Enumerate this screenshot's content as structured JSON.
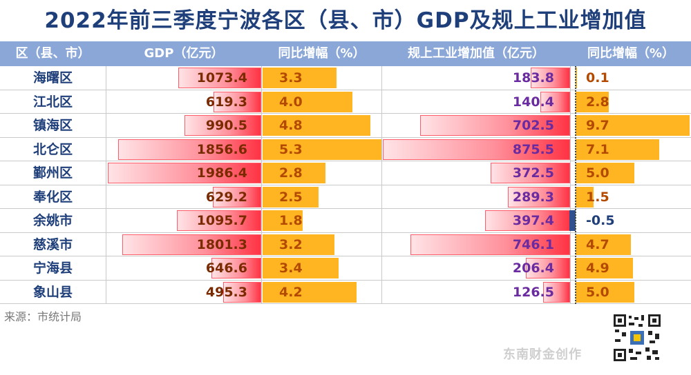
{
  "title": "2022年前三季度宁波各区（县、市）GDP及规上工业增加值",
  "headers": [
    "区（县、市）",
    "GDP（亿元）",
    "同比增幅（%）",
    "规上工业增加值（亿元）",
    "同比增幅（%）"
  ],
  "source": "来源：市统计局",
  "watermark": "东南财金创作",
  "colors": {
    "title": "#1f3f7a",
    "header_bg": "#8aa7d8",
    "bar_red": "#ff3344",
    "bar_orange": "#ffb522"
  },
  "rows": [
    {
      "name": "海曙区",
      "gdp": "1073.4",
      "gdp_g": "3.3",
      "ind": "183.8",
      "ind_g": "0.1"
    },
    {
      "name": "江北区",
      "gdp": "619.3",
      "gdp_g": "4.0",
      "ind": "140.4",
      "ind_g": "2.8"
    },
    {
      "name": "镇海区",
      "gdp": "990.5",
      "gdp_g": "4.8",
      "ind": "702.5",
      "ind_g": "9.7"
    },
    {
      "name": "北仑区",
      "gdp": "1856.6",
      "gdp_g": "5.3",
      "ind": "875.5",
      "ind_g": "7.1"
    },
    {
      "name": "鄞州区",
      "gdp": "1986.4",
      "gdp_g": "2.8",
      "ind": "372.5",
      "ind_g": "5.0"
    },
    {
      "name": "奉化区",
      "gdp": "629.2",
      "gdp_g": "2.5",
      "ind": "289.3",
      "ind_g": "1.5"
    },
    {
      "name": "余姚市",
      "gdp": "1095.7",
      "gdp_g": "1.8",
      "ind": "397.4",
      "ind_g": "-0.5"
    },
    {
      "name": "慈溪市",
      "gdp": "1801.3",
      "gdp_g": "3.2",
      "ind": "746.1",
      "ind_g": "4.7"
    },
    {
      "name": "宁海县",
      "gdp": "646.6",
      "gdp_g": "3.4",
      "ind": "206.4",
      "ind_g": "4.9"
    },
    {
      "name": "象山县",
      "gdp": "495.3",
      "gdp_g": "4.2",
      "ind": "126.5",
      "ind_g": "5.0"
    }
  ],
  "chart_data": {
    "type": "table",
    "categories": [
      "海曙区",
      "江北区",
      "镇海区",
      "北仑区",
      "鄞州区",
      "奉化区",
      "余姚市",
      "慈溪市",
      "宁海县",
      "象山县"
    ],
    "series": [
      {
        "name": "GDP（亿元）",
        "values": [
          1073.4,
          619.3,
          990.5,
          1856.6,
          1986.4,
          629.2,
          1095.7,
          1801.3,
          646.6,
          495.3
        ]
      },
      {
        "name": "同比增幅（%）",
        "values": [
          3.3,
          4.0,
          4.8,
          5.3,
          2.8,
          2.5,
          1.8,
          3.2,
          3.4,
          4.2
        ]
      },
      {
        "name": "规上工业增加值（亿元）",
        "values": [
          183.8,
          140.4,
          702.5,
          875.5,
          372.5,
          289.3,
          397.4,
          746.1,
          206.4,
          126.5
        ]
      },
      {
        "name": "同比增幅（%）",
        "values": [
          0.1,
          2.8,
          9.7,
          7.1,
          5.0,
          1.5,
          -0.5,
          4.7,
          4.9,
          5.0
        ]
      }
    ]
  }
}
